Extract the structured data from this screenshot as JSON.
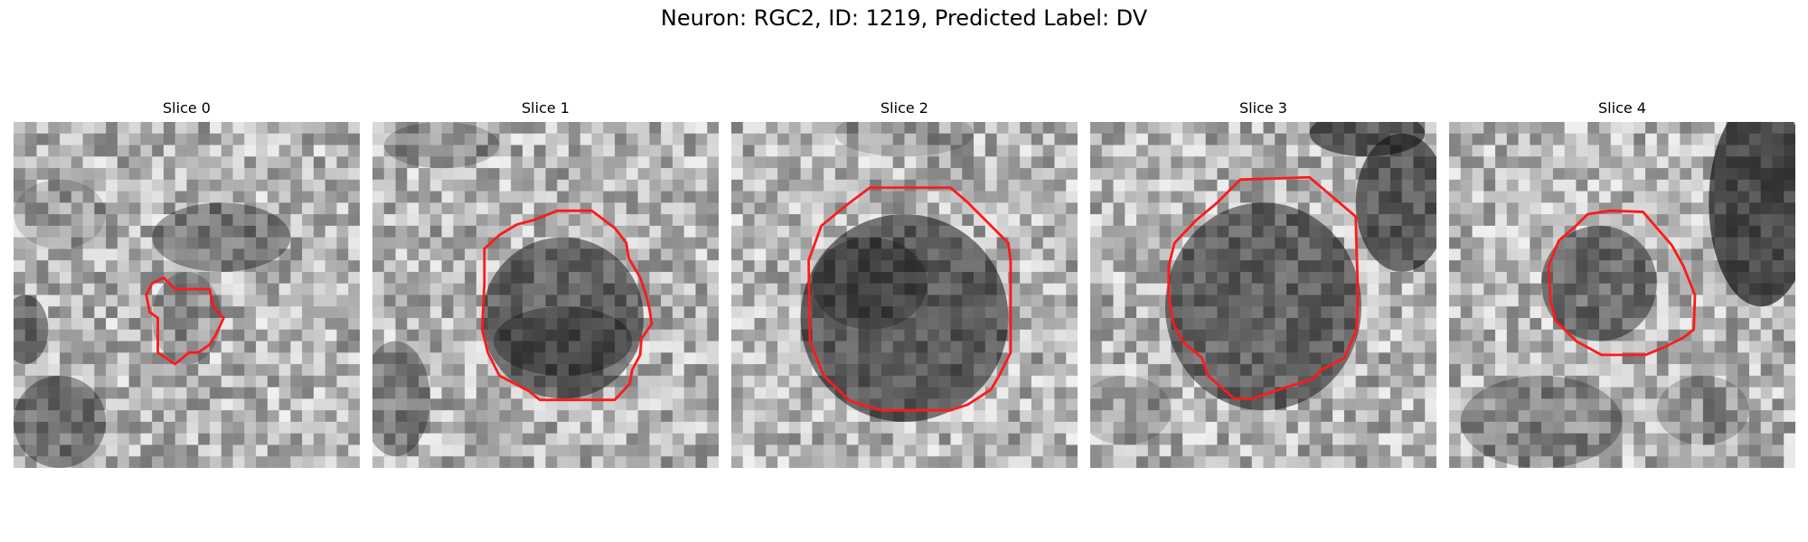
{
  "figure": {
    "title": "Neuron: RGC2, ID: 1219, Predicted Label: DV"
  },
  "slices": [
    {
      "title": "Slice 0"
    },
    {
      "title": "Slice 1"
    },
    {
      "title": "Slice 2"
    },
    {
      "title": "Slice 3"
    },
    {
      "title": "Slice 4"
    }
  ],
  "colors": {
    "contour": "#ff1a1a",
    "background": "#ffffff"
  }
}
